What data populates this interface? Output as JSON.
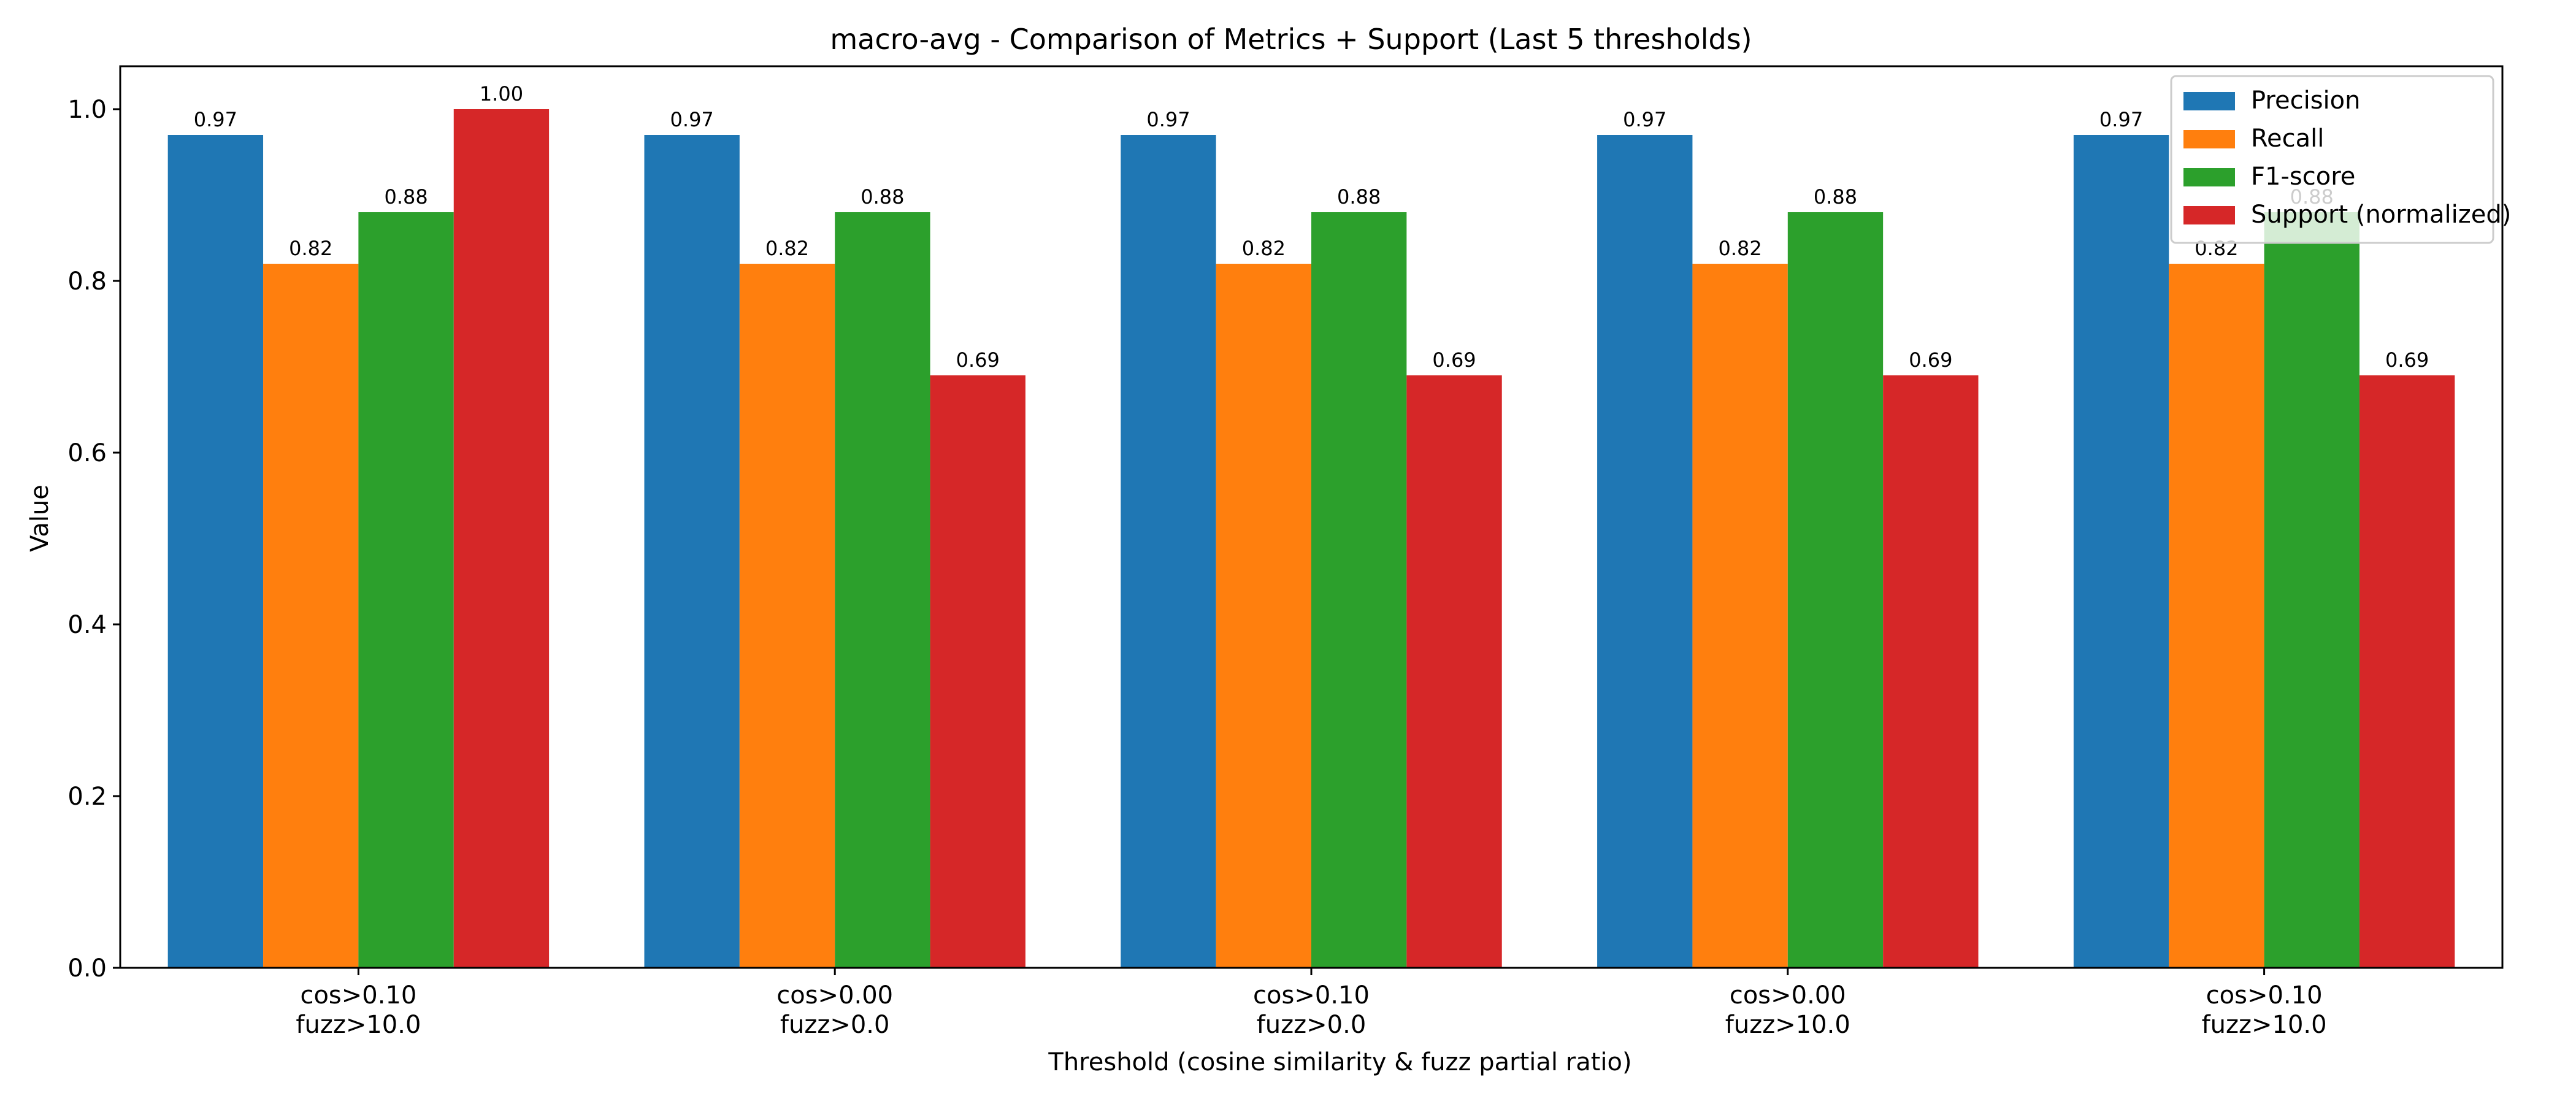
{
  "chart_data": {
    "type": "bar",
    "title": "macro-avg - Comparison of Metrics + Support (Last 5 thresholds)",
    "xlabel": "Threshold (cosine similarity & fuzz partial ratio)",
    "ylabel": "Value",
    "ylim": [
      0,
      1.05
    ],
    "yticks": [
      "0.0",
      "0.2",
      "0.4",
      "0.6",
      "0.8",
      "1.0"
    ],
    "categories": [
      [
        "cos>0.10",
        "fuzz>10.0"
      ],
      [
        "cos>0.00",
        "fuzz>0.0"
      ],
      [
        "cos>0.10",
        "fuzz>0.0"
      ],
      [
        "cos>0.00",
        "fuzz>10.0"
      ],
      [
        "cos>0.10",
        "fuzz>10.0"
      ]
    ],
    "series": [
      {
        "name": "Precision",
        "color": "#1f77b4",
        "values": [
          0.97,
          0.97,
          0.97,
          0.97,
          0.97
        ],
        "labels": [
          "0.97",
          "0.97",
          "0.97",
          "0.97",
          "0.97"
        ]
      },
      {
        "name": "Recall",
        "color": "#ff7f0e",
        "values": [
          0.82,
          0.82,
          0.82,
          0.82,
          0.82
        ],
        "labels": [
          "0.82",
          "0.82",
          "0.82",
          "0.82",
          "0.82"
        ]
      },
      {
        "name": "F1-score",
        "color": "#2ca02c",
        "values": [
          0.88,
          0.88,
          0.88,
          0.88,
          0.88
        ],
        "labels": [
          "0.88",
          "0.88",
          "0.88",
          "0.88",
          "0.88"
        ]
      },
      {
        "name": "Support (normalized)",
        "color": "#d62728",
        "values": [
          1.0,
          0.69,
          0.69,
          0.69,
          0.69
        ],
        "labels": [
          "1.00",
          "0.69",
          "0.69",
          "0.69",
          "0.69"
        ]
      }
    ],
    "legend_position": "top-right",
    "grid": false
  }
}
